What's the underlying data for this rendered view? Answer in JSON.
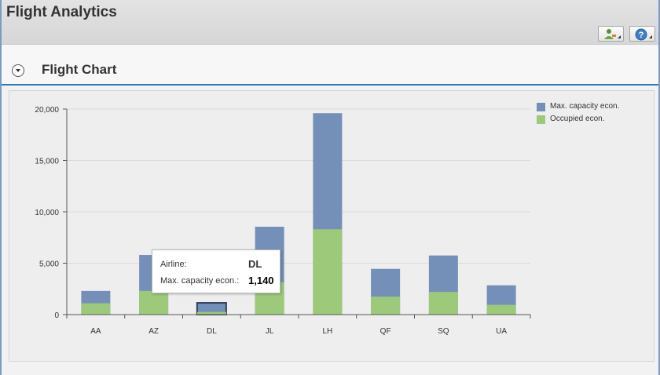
{
  "app": {
    "title": "Flight Analytics"
  },
  "toolbar": {
    "buttons": [
      {
        "icon": "person-settings-icon"
      },
      {
        "icon": "help-icon"
      }
    ]
  },
  "panel": {
    "title": "Flight Chart"
  },
  "colors": {
    "max_capacity": "#7590b8",
    "occupied": "#9dc97b",
    "accent": "#2c7ab8"
  },
  "chart_data": {
    "type": "bar",
    "stacked": "overlay",
    "categories": [
      "AA",
      "AZ",
      "DL",
      "JL",
      "LH",
      "QF",
      "SQ",
      "UA"
    ],
    "series": [
      {
        "name": "Max. capacity econ.",
        "values": [
          2300,
          5800,
          1140,
          8550,
          19600,
          4450,
          5750,
          2850
        ]
      },
      {
        "name": "Occupied econ.",
        "values": [
          1100,
          2300,
          250,
          3150,
          8300,
          1750,
          2200,
          950
        ]
      }
    ],
    "yticks": [
      "0",
      "5,000",
      "10,000",
      "15,000",
      "20,000"
    ],
    "ylim": [
      0,
      20000
    ],
    "grid": true,
    "legend": "top-right",
    "selected_index": 2
  },
  "tooltip": {
    "airline_label": "Airline:",
    "airline_value": "DL",
    "capacity_label": "Max. capacity econ.:",
    "capacity_value": "1,140"
  }
}
